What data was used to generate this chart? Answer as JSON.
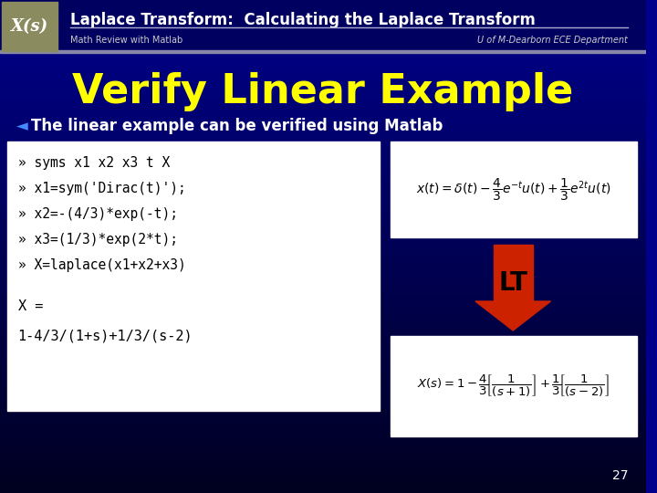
{
  "header_title": "Laplace Transform:  Calculating the Laplace Transform",
  "header_subtitle_left": "Math Review with Matlab",
  "header_subtitle_right": "U of M-Dearborn ECE Department",
  "xs_label": "X(s)",
  "main_title": "Verify Linear Example",
  "bullet_text": "The linear example can be verified using Matlab",
  "code_lines": [
    "» syms x1 x2 x3 t X",
    "» x1=sym('Dirac(t)');",
    "» x2=-(4/3)*exp(-t);",
    "» x3=(1/3)*exp(2*t);",
    "» X=laplace(x1+x2+x3)"
  ],
  "result_label": "X =",
  "result_value": "1-4/3/(1+s)+1/3/(s-2)",
  "lt_label": "LT",
  "page_number": "27",
  "bg_color_top": "#00008B",
  "bg_color_bottom": "#000020",
  "header_bg": "#00008B",
  "header_bar_color": "#C8C864",
  "xs_bg": "#808060",
  "title_color": "#FFFF00",
  "header_text_color": "#FFFFFF",
  "bullet_color": "#FFFFFF",
  "code_bg": "#FFFFFF",
  "code_text_color": "#000000",
  "arrow_color": "#CC2200",
  "formula_bg": "#FFFFFF",
  "lt_color": "#000000",
  "page_num_color": "#FFFFFF"
}
